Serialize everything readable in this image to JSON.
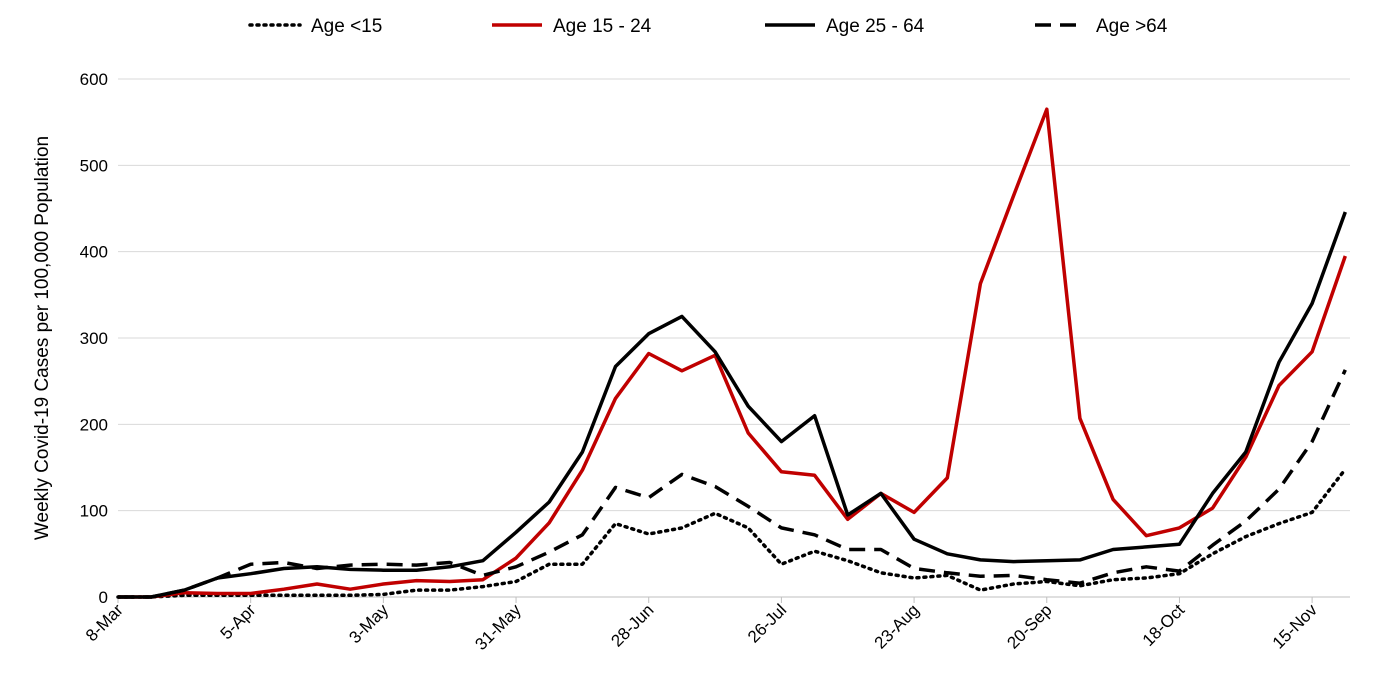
{
  "chart_data": {
    "type": "line",
    "y_label": "Weekly Covid-19 Cases per 100,000 Population",
    "categories": [
      "8-Mar",
      null,
      null,
      null,
      "5-Apr",
      null,
      null,
      null,
      "3-May",
      null,
      null,
      null,
      "31-May",
      null,
      null,
      null,
      "28-Jun",
      null,
      null,
      null,
      "26-Jul",
      null,
      null,
      null,
      "23-Aug",
      null,
      null,
      null,
      "20-Sep",
      null,
      null,
      null,
      "18-Oct",
      null,
      null,
      null,
      "15-Nov",
      null
    ],
    "series": [
      {
        "name": "Age <15",
        "color": "#000000",
        "dash": "dotted",
        "values": [
          0,
          0,
          2,
          2,
          2,
          2,
          2,
          2,
          3,
          8,
          8,
          12,
          18,
          38,
          38,
          85,
          73,
          80,
          97,
          80,
          38,
          53,
          42,
          28,
          22,
          25,
          8,
          15,
          18,
          13,
          20,
          22,
          27,
          50,
          70,
          85,
          98,
          148
        ]
      },
      {
        "name": "Age 15 - 24",
        "color": "#c00000",
        "dash": "solid",
        "values": [
          0,
          0,
          5,
          4,
          4,
          9,
          15,
          9,
          15,
          19,
          18,
          20,
          45,
          86,
          147,
          230,
          282,
          262,
          280,
          190,
          145,
          141,
          90,
          120,
          98,
          138,
          363,
          465,
          565,
          207,
          113,
          71,
          80,
          103,
          162,
          245,
          284,
          395
        ]
      },
      {
        "name": "Age 25 - 64",
        "color": "#000000",
        "dash": "solid",
        "values": [
          0,
          0,
          8,
          22,
          27,
          33,
          35,
          32,
          31,
          31,
          35,
          42,
          75,
          110,
          168,
          267,
          305,
          325,
          284,
          221,
          180,
          210,
          95,
          120,
          67,
          50,
          43,
          41,
          42,
          43,
          55,
          58,
          61,
          120,
          168,
          272,
          340,
          446
        ]
      },
      {
        "name": "Age >64",
        "color": "#000000",
        "dash": "dashed",
        "values": [
          0,
          0,
          8,
          22,
          38,
          40,
          33,
          37,
          38,
          37,
          40,
          25,
          35,
          52,
          72,
          127,
          115,
          142,
          128,
          105,
          80,
          72,
          55,
          55,
          33,
          28,
          24,
          25,
          20,
          16,
          28,
          35,
          30,
          60,
          88,
          125,
          180,
          263
        ]
      }
    ],
    "ylim": [
      0,
      600
    ],
    "yticks": [
      0,
      100,
      200,
      300,
      400,
      500,
      600
    ],
    "grid": true,
    "legend": "top"
  }
}
